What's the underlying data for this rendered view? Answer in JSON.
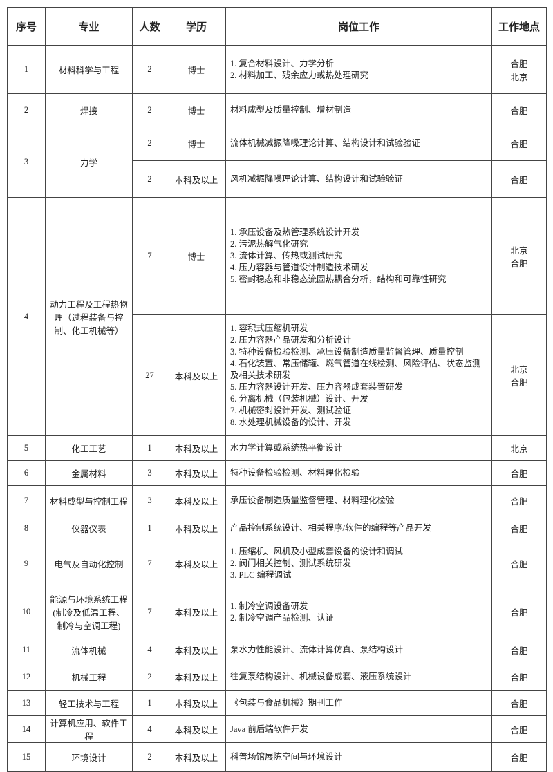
{
  "headers": [
    "序号",
    "专业",
    "人数",
    "学历",
    "岗位工作",
    "工作地点"
  ],
  "rows": [
    {
      "no": "1",
      "major": "材料科学与工程",
      "count": "2",
      "degree": "博士",
      "duties": [
        "1. 复合材料设计、力学分析",
        "2. 材料加工、残余应力或热处理研究"
      ],
      "location": [
        "合肥",
        "北京"
      ]
    },
    {
      "no": "2",
      "major": "焊接",
      "count": "2",
      "degree": "博士",
      "duties": [
        "材料成型及质量控制、增材制造"
      ],
      "location": [
        "合肥"
      ]
    },
    {
      "no": "3",
      "major": "力学",
      "count": "2",
      "degree": "博士",
      "duties": [
        "流体机械减振降噪理论计算、结构设计和试验验证"
      ],
      "location": [
        "合肥"
      ]
    },
    {
      "no": "",
      "major": "",
      "count": "2",
      "degree": "本科及以上",
      "duties": [
        "风机减振降噪理论计算、结构设计和试验验证"
      ],
      "location": [
        "合肥"
      ]
    },
    {
      "no": "4",
      "major": "动力工程及工程热物理（过程装备与控制、化工机械等）",
      "count": "7",
      "degree": "博士",
      "duties": [
        "1. 承压设备及热管理系统设计开发",
        "2. 污泥热解气化研究",
        "3. 流体计算、传热或测试研究",
        "4. 压力容器与管道设计制造技术研发",
        "5. 密封稳态和非稳态流固热耦合分析，结构和可靠性研究"
      ],
      "location": [
        "北京",
        "合肥"
      ]
    },
    {
      "no": "",
      "major": "",
      "count": "27",
      "degree": "本科及以上",
      "duties": [
        "1. 容积式压缩机研发",
        "2. 压力容器产品研发和分析设计",
        "3. 特种设备检验检测、承压设备制造质量监督管理、质量控制",
        "4. 石化装置、常压储罐、燃气管道在线检测、风险评估、状态监测及相关技术研发",
        "5. 压力容器设计开发、压力容器成套装置研发",
        "6. 分离机械（包装机械）设计、开发",
        "7. 机械密封设计开发、测试验证",
        "8. 水处理机械设备的设计、开发"
      ],
      "location": [
        "北京",
        "合肥"
      ]
    },
    {
      "no": "5",
      "major": "化工工艺",
      "count": "1",
      "degree": "本科及以上",
      "duties": [
        "水力学计算或系统热平衡设计"
      ],
      "location": [
        "北京"
      ]
    },
    {
      "no": "6",
      "major": "金属材料",
      "count": "3",
      "degree": "本科及以上",
      "duties": [
        "特种设备检验检测、材料理化检验"
      ],
      "location": [
        "合肥"
      ]
    },
    {
      "no": "7",
      "major": "材料成型与控制工程",
      "count": "3",
      "degree": "本科及以上",
      "duties": [
        "承压设备制造质量监督管理、材料理化检验"
      ],
      "location": [
        "合肥"
      ]
    },
    {
      "no": "8",
      "major": "仪器仪表",
      "count": "1",
      "degree": "本科及以上",
      "duties": [
        "产品控制系统设计、相关程序/软件的编程等产品开发"
      ],
      "location": [
        "合肥"
      ]
    },
    {
      "no": "9",
      "major": "电气及自动化控制",
      "count": "7",
      "degree": "本科及以上",
      "duties": [
        "1. 压缩机、风机及小型成套设备的设计和调试",
        "2. 阀门相关控制、测试系统研发",
        "3. PLC 编程调试"
      ],
      "location": [
        "合肥"
      ]
    },
    {
      "no": "10",
      "major": "能源与环境系统工程(制冷及低温工程、制冷与空调工程)",
      "count": "7",
      "degree": "本科及以上",
      "duties": [
        "1. 制冷空调设备研发",
        "2. 制冷空调产品检测、认证"
      ],
      "location": [
        "合肥"
      ]
    },
    {
      "no": "11",
      "major": "流体机械",
      "count": "4",
      "degree": "本科及以上",
      "duties": [
        "泵水力性能设计、流体计算仿真、泵结构设计"
      ],
      "location": [
        "合肥"
      ]
    },
    {
      "no": "12",
      "major": "机械工程",
      "count": "2",
      "degree": "本科及以上",
      "duties": [
        "往复泵结构设计、机械设备成套、液压系统设计"
      ],
      "location": [
        "合肥"
      ]
    },
    {
      "no": "13",
      "major": "轻工技术与工程",
      "count": "1",
      "degree": "本科及以上",
      "duties": [
        "《包装与食品机械》期刊工作"
      ],
      "location": [
        "合肥"
      ]
    },
    {
      "no": "14",
      "major": "计算机应用、软件工程",
      "count": "4",
      "degree": "本科及以上",
      "duties": [
        "Java 前后端软件开发"
      ],
      "location": [
        "合肥"
      ]
    },
    {
      "no": "15",
      "major": "环境设计",
      "count": "2",
      "degree": "本科及以上",
      "duties": [
        "科普场馆展陈空间与环境设计"
      ],
      "location": [
        "合肥"
      ]
    }
  ]
}
